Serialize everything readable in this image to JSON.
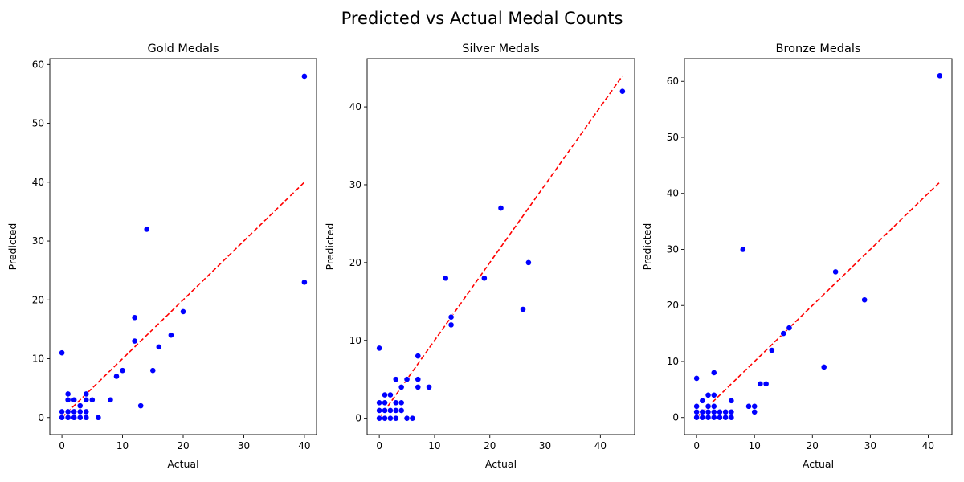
{
  "figure": {
    "suptitle": "Predicted vs Actual Medal Counts"
  },
  "chart_data": [
    {
      "type": "scatter",
      "title": "Gold Medals",
      "xlabel": "Actual",
      "ylabel": "Predicted",
      "xlim": [
        -2,
        42
      ],
      "ylim": [
        -2.9,
        61
      ],
      "xticks": [
        0,
        10,
        20,
        30,
        40
      ],
      "yticks": [
        0,
        10,
        20,
        30,
        40,
        50,
        60
      ],
      "point_color": "#0000ff",
      "reference_line": {
        "x": [
          0,
          40
        ],
        "y": [
          0,
          40
        ],
        "color": "#ff0000",
        "style": "dashed"
      },
      "points": [
        {
          "x": 0,
          "y": 0
        },
        {
          "x": 0,
          "y": 1
        },
        {
          "x": 0,
          "y": 11
        },
        {
          "x": 1,
          "y": 0
        },
        {
          "x": 1,
          "y": 1
        },
        {
          "x": 1,
          "y": 3
        },
        {
          "x": 1,
          "y": 4
        },
        {
          "x": 2,
          "y": 0
        },
        {
          "x": 2,
          "y": 1
        },
        {
          "x": 2,
          "y": 3
        },
        {
          "x": 3,
          "y": 0
        },
        {
          "x": 3,
          "y": 1
        },
        {
          "x": 3,
          "y": 2
        },
        {
          "x": 4,
          "y": 0
        },
        {
          "x": 4,
          "y": 1
        },
        {
          "x": 4,
          "y": 3
        },
        {
          "x": 4,
          "y": 4
        },
        {
          "x": 5,
          "y": 3
        },
        {
          "x": 6,
          "y": 0
        },
        {
          "x": 8,
          "y": 3
        },
        {
          "x": 9,
          "y": 7
        },
        {
          "x": 10,
          "y": 8
        },
        {
          "x": 12,
          "y": 13
        },
        {
          "x": 12,
          "y": 17
        },
        {
          "x": 13,
          "y": 2
        },
        {
          "x": 14,
          "y": 32
        },
        {
          "x": 15,
          "y": 8
        },
        {
          "x": 16,
          "y": 12
        },
        {
          "x": 18,
          "y": 14
        },
        {
          "x": 20,
          "y": 18
        },
        {
          "x": 40,
          "y": 23
        },
        {
          "x": 40,
          "y": 58
        }
      ]
    },
    {
      "type": "scatter",
      "title": "Silver Medals",
      "xlabel": "Actual",
      "ylabel": "Predicted",
      "xlim": [
        -2.2,
        46.2
      ],
      "ylim": [
        -2.1,
        46.2
      ],
      "xticks": [
        0,
        10,
        20,
        30,
        40
      ],
      "yticks": [
        0,
        10,
        20,
        30,
        40
      ],
      "point_color": "#0000ff",
      "reference_line": {
        "x": [
          0,
          44
        ],
        "y": [
          0,
          44
        ],
        "color": "#ff0000",
        "style": "dashed"
      },
      "points": [
        {
          "x": 0,
          "y": 0
        },
        {
          "x": 0,
          "y": 1
        },
        {
          "x": 0,
          "y": 2
        },
        {
          "x": 0,
          "y": 9
        },
        {
          "x": 1,
          "y": 0
        },
        {
          "x": 1,
          "y": 1
        },
        {
          "x": 1,
          "y": 2
        },
        {
          "x": 1,
          "y": 3
        },
        {
          "x": 2,
          "y": 0
        },
        {
          "x": 2,
          "y": 1
        },
        {
          "x": 2,
          "y": 3
        },
        {
          "x": 3,
          "y": 0
        },
        {
          "x": 3,
          "y": 1
        },
        {
          "x": 3,
          "y": 2
        },
        {
          "x": 3,
          "y": 5
        },
        {
          "x": 4,
          "y": 1
        },
        {
          "x": 4,
          "y": 2
        },
        {
          "x": 4,
          "y": 4
        },
        {
          "x": 5,
          "y": 0
        },
        {
          "x": 5,
          "y": 5
        },
        {
          "x": 6,
          "y": 0
        },
        {
          "x": 7,
          "y": 4
        },
        {
          "x": 7,
          "y": 5
        },
        {
          "x": 7,
          "y": 8
        },
        {
          "x": 9,
          "y": 4
        },
        {
          "x": 12,
          "y": 18
        },
        {
          "x": 13,
          "y": 12
        },
        {
          "x": 13,
          "y": 13
        },
        {
          "x": 19,
          "y": 18
        },
        {
          "x": 22,
          "y": 27
        },
        {
          "x": 26,
          "y": 14
        },
        {
          "x": 27,
          "y": 20
        },
        {
          "x": 44,
          "y": 42
        }
      ]
    },
    {
      "type": "scatter",
      "title": "Bronze Medals",
      "xlabel": "Actual",
      "ylabel": "Predicted",
      "xlim": [
        -2.1,
        44.1
      ],
      "ylim": [
        -3.05,
        64.05
      ],
      "xticks": [
        0,
        10,
        20,
        30,
        40
      ],
      "yticks": [
        0,
        10,
        20,
        30,
        40,
        50,
        60
      ],
      "point_color": "#0000ff",
      "reference_line": {
        "x": [
          0,
          42
        ],
        "y": [
          0,
          42
        ],
        "color": "#ff0000",
        "style": "dashed"
      },
      "points": [
        {
          "x": 0,
          "y": 0
        },
        {
          "x": 0,
          "y": 1
        },
        {
          "x": 0,
          "y": 2
        },
        {
          "x": 0,
          "y": 7
        },
        {
          "x": 1,
          "y": 0
        },
        {
          "x": 1,
          "y": 1
        },
        {
          "x": 1,
          "y": 3
        },
        {
          "x": 2,
          "y": 0
        },
        {
          "x": 2,
          "y": 1
        },
        {
          "x": 2,
          "y": 2
        },
        {
          "x": 2,
          "y": 4
        },
        {
          "x": 3,
          "y": 0
        },
        {
          "x": 3,
          "y": 1
        },
        {
          "x": 3,
          "y": 2
        },
        {
          "x": 3,
          "y": 4
        },
        {
          "x": 3,
          "y": 8
        },
        {
          "x": 4,
          "y": 0
        },
        {
          "x": 4,
          "y": 1
        },
        {
          "x": 5,
          "y": 0
        },
        {
          "x": 5,
          "y": 1
        },
        {
          "x": 6,
          "y": 0
        },
        {
          "x": 6,
          "y": 1
        },
        {
          "x": 6,
          "y": 3
        },
        {
          "x": 8,
          "y": 30
        },
        {
          "x": 9,
          "y": 2
        },
        {
          "x": 10,
          "y": 1
        },
        {
          "x": 10,
          "y": 2
        },
        {
          "x": 11,
          "y": 6
        },
        {
          "x": 12,
          "y": 6
        },
        {
          "x": 13,
          "y": 12
        },
        {
          "x": 15,
          "y": 15
        },
        {
          "x": 16,
          "y": 16
        },
        {
          "x": 22,
          "y": 9
        },
        {
          "x": 24,
          "y": 26
        },
        {
          "x": 29,
          "y": 21
        },
        {
          "x": 42,
          "y": 61
        }
      ]
    }
  ]
}
